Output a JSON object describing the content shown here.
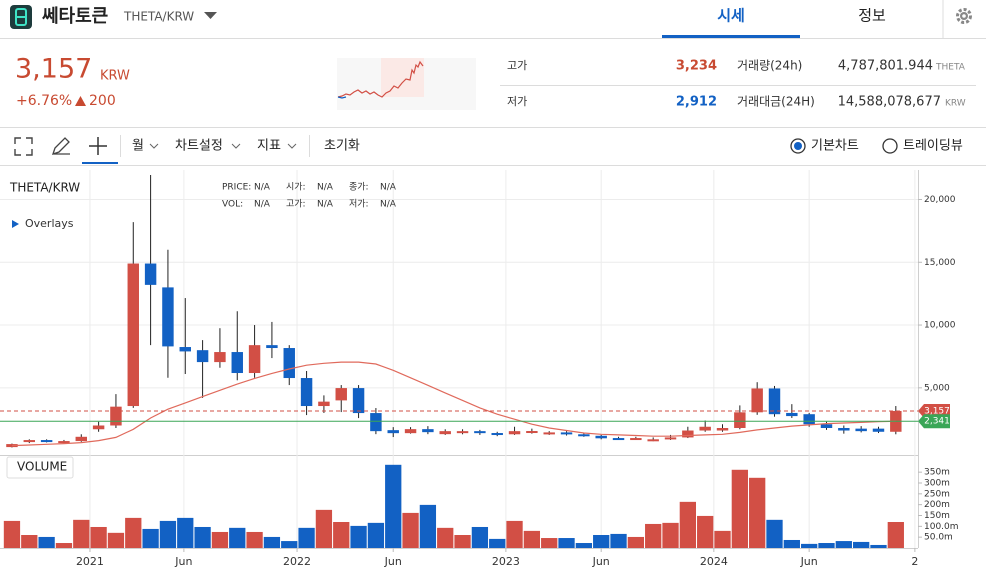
{
  "header": {
    "name": "쎄타토큰",
    "pair": "THETA/KRW",
    "tabs": [
      "시세",
      "정보"
    ]
  },
  "quote": {
    "price": "3,157",
    "unit": "KRW",
    "change_rate": "+6.76%",
    "change": "200"
  },
  "stats": [
    {
      "label": "고가",
      "value": "3,234"
    },
    {
      "label": "저가",
      "value": "2,912"
    },
    {
      "label": "거래량(24h)",
      "value": "4,787,801.944",
      "unit": "THETA"
    },
    {
      "label": "거래대금(24H)",
      "value": "14,588,078,677",
      "unit": "KRW"
    }
  ],
  "toolbar": {
    "menus": [
      "월",
      "차트설정",
      "지표"
    ],
    "reset": "초기화",
    "modes": [
      "기본차트",
      "트레이딩뷰"
    ]
  },
  "chart_data": [
    {
      "type": "candlestick",
      "title": "THETA/KRW",
      "overlays": "Overlays",
      "info": [
        [
          "PRICE:",
          "N/A"
        ],
        [
          "시가:",
          "N/A"
        ],
        [
          "종가:",
          "N/A"
        ],
        [
          "VOL:",
          "N/A"
        ],
        [
          "고가:",
          "N/A"
        ],
        [
          "저가:",
          "N/A"
        ]
      ],
      "up_color": "#d24f45",
      "down_color": "#1261c4",
      "ma_color": "#e06a5c",
      "open": [
        280,
        680,
        840,
        600,
        760,
        1700,
        2000,
        3550,
        14900,
        13000,
        8250,
        8000,
        7050,
        7850,
        6180,
        8400,
        8170,
        5780,
        3550,
        4000,
        4980,
        2990,
        1630,
        1390,
        1710,
        1310,
        1400,
        1550,
        1400,
        1300,
        1450,
        1350,
        1450,
        1300,
        1180,
        1000,
        900,
        800,
        900,
        1050,
        1600,
        1600,
        1800,
        3050,
        4950,
        3000,
        2900,
        2100,
        1800,
        1750,
        1750,
        1500
      ],
      "high": [
        560,
        900,
        900,
        850,
        1300,
        2300,
        4500,
        18200,
        21950,
        16000,
        12150,
        8800,
        9750,
        11100,
        10000,
        10250,
        8400,
        6340,
        4400,
        5220,
        5220,
        3390,
        1870,
        1870,
        1950,
        1700,
        1700,
        1650,
        1500,
        1900,
        1750,
        1550,
        1550,
        1400,
        1250,
        1100,
        1100,
        1050,
        1250,
        1900,
        2400,
        2100,
        3600,
        5450,
        5150,
        3700,
        3000,
        2300,
        2000,
        1950,
        1900,
        3550
      ],
      "low": [
        250,
        600,
        650,
        550,
        700,
        1500,
        1800,
        3400,
        8400,
        5800,
        6100,
        4200,
        6600,
        5600,
        5800,
        7370,
        5220,
        2830,
        3000,
        3070,
        2590,
        1310,
        1080,
        1350,
        1310,
        1250,
        1300,
        1250,
        1150,
        1250,
        1350,
        1250,
        1200,
        1100,
        900,
        850,
        850,
        750,
        850,
        1000,
        1500,
        1500,
        1700,
        2850,
        2700,
        2600,
        1900,
        1650,
        1350,
        1450,
        1400,
        1300
      ],
      "close": [
        520,
        840,
        680,
        760,
        1100,
        2000,
        3500,
        14900,
        13200,
        8300,
        7900,
        7050,
        7850,
        6180,
        8400,
        8170,
        5780,
        3550,
        3900,
        4980,
        2990,
        1550,
        1390,
        1710,
        1470,
        1550,
        1550,
        1400,
        1300,
        1550,
        1560,
        1450,
        1300,
        1180,
        980,
        900,
        1000,
        900,
        1050,
        1600,
        1900,
        1800,
        3050,
        4950,
        2900,
        2750,
        2100,
        1800,
        1600,
        1550,
        1500,
        3157
      ],
      "ma": [
        400,
        450,
        500,
        560,
        640,
        800,
        1050,
        1700,
        2600,
        3300,
        3800,
        4300,
        4800,
        5300,
        5750,
        6150,
        6500,
        6800,
        6950,
        7050,
        7050,
        6900,
        6400,
        5800,
        5200,
        4600,
        4000,
        3400,
        2900,
        2500,
        2100,
        1800,
        1600,
        1400,
        1300,
        1250,
        1200,
        1150,
        1150,
        1200,
        1250,
        1300,
        1450,
        1650,
        1800,
        1950,
        2050,
        2150,
        2200,
        2250,
        2300,
        2341
      ],
      "price_tags": [
        {
          "value": 3157,
          "label": "3,157",
          "color": "#d24f45"
        },
        {
          "value": 2341,
          "label": "2,341",
          "color": "#3aa657"
        }
      ],
      "xlim": [
        -0.69,
        52.28
      ],
      "xticks": [
        {
          "value": 4.5,
          "label": "2021"
        },
        {
          "value": 9.92,
          "label": "Jun"
        },
        {
          "value": 16.45,
          "label": "2022"
        },
        {
          "value": 22,
          "label": "Jun"
        },
        {
          "value": 28.5,
          "label": "2023"
        },
        {
          "value": 34,
          "label": "Jun"
        },
        {
          "value": 40.5,
          "label": "2024"
        },
        {
          "value": 46,
          "label": "Jun"
        },
        {
          "value": 52.1,
          "label": "2"
        }
      ],
      "ylim": [
        -350,
        22350
      ],
      "yticks": [
        {
          "value": 5000,
          "label": "5,000"
        },
        {
          "value": 10000,
          "label": "10,000"
        },
        {
          "value": 15000,
          "label": "15,000"
        },
        {
          "value": 20000,
          "label": "20,000"
        }
      ]
    },
    {
      "type": "bar",
      "title": "VOLUME",
      "values": [
        125,
        60,
        51,
        23,
        130,
        97,
        70,
        139,
        88,
        125,
        139,
        97,
        74,
        93,
        74,
        51,
        32,
        93,
        176,
        120,
        102,
        116,
        384,
        162,
        199,
        93,
        60,
        97,
        42,
        125,
        79,
        46,
        46,
        23,
        60,
        65,
        51,
        111,
        116,
        213,
        148,
        79,
        361,
        324,
        130,
        37,
        19,
        23,
        32,
        28,
        14,
        120
      ],
      "ylim": [
        0,
        420
      ],
      "yticks": [
        {
          "value": 50,
          "label": "50.0m"
        },
        {
          "value": 100,
          "label": "100.0m"
        },
        {
          "value": 150,
          "label": "150m"
        },
        {
          "value": 200,
          "label": "200m"
        },
        {
          "value": 250,
          "label": "250m"
        },
        {
          "value": 300,
          "label": "300m"
        },
        {
          "value": 350,
          "label": "350m"
        }
      ]
    }
  ]
}
